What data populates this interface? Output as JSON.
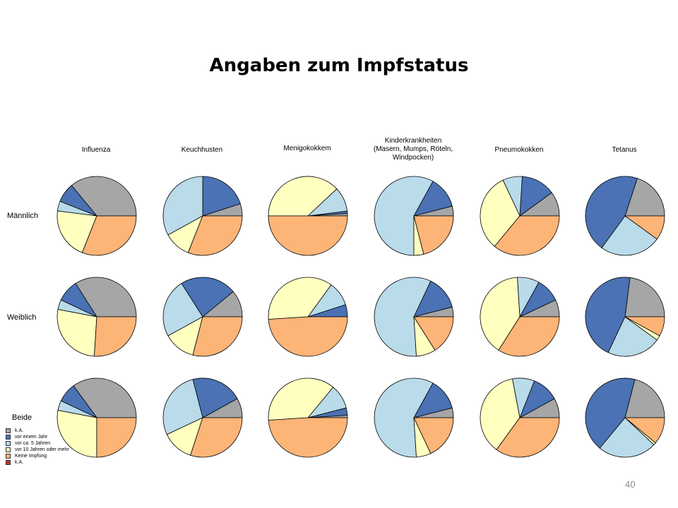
{
  "title": "Angaben zum Impfstatus",
  "page_number": "40",
  "chart_data": {
    "type": "pie",
    "columns": [
      "Influenza",
      "Keuchhusten",
      "Menigokokkem",
      "Kinderkrankheiten\n(Masern, Mumps, Röteln,\nWindpocken)",
      "Pneumokokken",
      "Tetanus"
    ],
    "rows": [
      "Männlich",
      "Weiblich",
      "Beide"
    ],
    "legend": [
      {
        "label": "k.A.",
        "color": "#a6a6a6"
      },
      {
        "label": "vor einem Jahr",
        "color": "#4a72b4"
      },
      {
        "label": "vor ca. 5 Jahren",
        "color": "#b9dbea"
      },
      {
        "label": "vor 10 Jahren oder mehr",
        "color": "#ffffc0"
      },
      {
        "label": "Keine Impfung",
        "color": "#fdb477"
      },
      {
        "label": "k.A.",
        "color": "#c0392b"
      }
    ],
    "pies": [
      [
        {
          "values": [
            0.36,
            0.08,
            0.04,
            0.21,
            0.31,
            0
          ]
        },
        {
          "values": [
            0.05,
            0.2,
            0.33,
            0.11,
            0.31,
            0
          ]
        },
        {
          "values": [
            0.01,
            0.01,
            0.1,
            0.38,
            0.5,
            0
          ]
        },
        {
          "values": [
            0.04,
            0.13,
            0.58,
            0.04,
            0.21,
            0
          ]
        },
        {
          "values": [
            0.1,
            0.14,
            0.08,
            0.32,
            0.36,
            0
          ]
        },
        {
          "values": [
            0.2,
            0.45,
            0.25,
            0.0,
            0.1,
            0
          ]
        }
      ],
      [
        {
          "values": [
            0.34,
            0.09,
            0.04,
            0.27,
            0.26,
            0
          ]
        },
        {
          "values": [
            0.11,
            0.23,
            0.24,
            0.13,
            0.29,
            0
          ]
        },
        {
          "values": [
            0.0,
            0.05,
            0.1,
            0.36,
            0.49,
            0
          ]
        },
        {
          "values": [
            0.04,
            0.14,
            0.58,
            0.08,
            0.16,
            0
          ]
        },
        {
          "values": [
            0.07,
            0.1,
            0.09,
            0.4,
            0.34,
            0
          ]
        },
        {
          "values": [
            0.23,
            0.45,
            0.22,
            0.02,
            0.08,
            0
          ]
        }
      ],
      [
        {
          "values": [
            0.35,
            0.08,
            0.04,
            0.28,
            0.25,
            0
          ]
        },
        {
          "values": [
            0.08,
            0.21,
            0.28,
            0.13,
            0.3,
            0
          ]
        },
        {
          "values": [
            0.01,
            0.03,
            0.1,
            0.37,
            0.49,
            0
          ]
        },
        {
          "values": [
            0.04,
            0.13,
            0.59,
            0.06,
            0.18,
            0
          ]
        },
        {
          "values": [
            0.08,
            0.11,
            0.09,
            0.37,
            0.35,
            0
          ]
        },
        {
          "values": [
            0.21,
            0.43,
            0.24,
            0.01,
            0.11,
            0
          ]
        }
      ]
    ]
  }
}
